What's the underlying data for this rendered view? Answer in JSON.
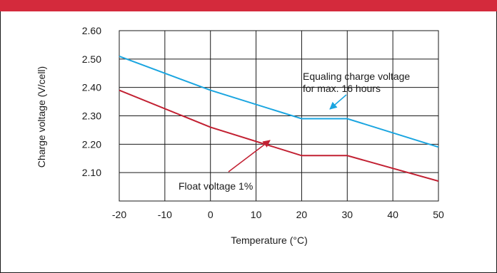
{
  "colors": {
    "top_bar": "#d42a3c",
    "grid": "#1a1a1a",
    "equalizing": "#1aa5e0",
    "float": "#c22032"
  },
  "chart_data": {
    "type": "line",
    "title": "",
    "xlabel": "Temperature (°C)",
    "ylabel": "Charge voltage (V/cell)",
    "xlim": [
      -20,
      50
    ],
    "ylim": [
      2.0,
      2.6
    ],
    "x_ticks": [
      "-20",
      "-10",
      "0",
      "10",
      "20",
      "30",
      "40",
      "50"
    ],
    "y_ticks": [
      "2.10",
      "2.20",
      "2.30",
      "2.40",
      "2.50",
      "2.60"
    ],
    "grid": true,
    "series": [
      {
        "name": "Equaling charge voltage for max. 16 hours",
        "x": [
          -20,
          0,
          20,
          30,
          50
        ],
        "y": [
          2.51,
          2.39,
          2.29,
          2.29,
          2.19
        ]
      },
      {
        "name": "Float voltage 1%",
        "x": [
          -20,
          0,
          20,
          30,
          50
        ],
        "y": [
          2.39,
          2.26,
          2.16,
          2.16,
          2.07
        ]
      }
    ],
    "annotations": {
      "equalizing_line1": "Equaling charge voltage",
      "equalizing_line2": "for max. 16 hours",
      "float": "Float voltage 1%"
    }
  }
}
